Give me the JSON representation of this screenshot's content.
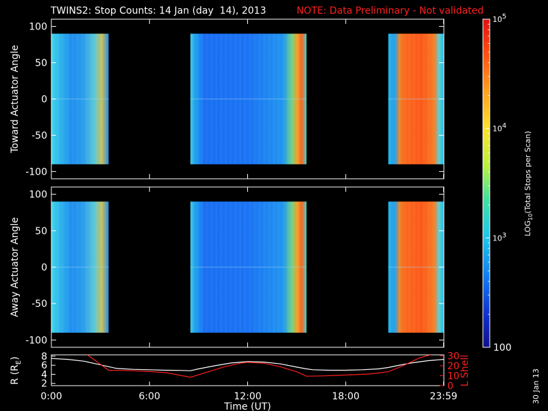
{
  "header": {
    "title": "TWINS2: Stop Counts: 14 Jan (day  14), 2013",
    "note": "NOTE: Data Preliminary - Not validated"
  },
  "footer": {
    "date_stamp": "30 Jan 13"
  },
  "colors": {
    "background": "#000000",
    "foreground": "#ffffff",
    "note": "#ff2020",
    "lshell_line": "#ff2020",
    "r_line": "#ffffff"
  },
  "chart_data": [
    {
      "type": "heatmap",
      "panel": "toward",
      "ylabel": "Toward Actuator Angle",
      "xlim_hours": [
        0,
        24
      ],
      "ylim": [
        -110,
        110
      ],
      "yticks": [
        100,
        50,
        0,
        -50,
        -100
      ],
      "data_angle_range": [
        -90,
        90
      ],
      "segments": [
        {
          "start": 0.0,
          "end": 3.5,
          "palette": "cyan-blue"
        },
        {
          "start": 8.5,
          "end": 15.6,
          "palette": "blue-center-orange-edge"
        },
        {
          "start": 20.6,
          "end": 24.0,
          "palette": "orange"
        }
      ]
    },
    {
      "type": "heatmap",
      "panel": "away",
      "ylabel": "Away Actuator Angle",
      "xlim_hours": [
        0,
        24
      ],
      "ylim": [
        -110,
        110
      ],
      "yticks": [
        100,
        50,
        0,
        -50,
        -100
      ],
      "data_angle_range": [
        -90,
        90
      ],
      "segments": [
        {
          "start": 0.0,
          "end": 3.5,
          "palette": "cyan-blue"
        },
        {
          "start": 8.5,
          "end": 15.6,
          "palette": "blue-center-orange-edge"
        },
        {
          "start": 20.6,
          "end": 24.0,
          "palette": "orange"
        }
      ]
    },
    {
      "type": "line",
      "panel": "orbit",
      "xlabel": "Time (UT)",
      "ylabel_left": "R (R",
      "ylabel_left_sub": "E",
      "ylabel_left_close": ")",
      "ylabel_right": "L Shell",
      "xticklabels": [
        "0:00",
        "6:00",
        "12:00",
        "18:00",
        "23:59"
      ],
      "xticks_hours": [
        0,
        6,
        12,
        18,
        23.98
      ],
      "ylim_left": [
        1.5,
        8.3
      ],
      "yticks_left": [
        8,
        6,
        4,
        2
      ],
      "ylim_right": [
        0,
        31
      ],
      "yticks_right": [
        30,
        20,
        10,
        0
      ],
      "series": [
        {
          "axis": "left",
          "x": [
            0,
            1,
            2,
            3,
            4,
            5,
            6,
            7,
            8,
            8.5,
            9,
            10,
            11,
            12,
            13,
            14,
            15,
            15.6,
            16,
            17,
            18,
            19,
            20,
            20.6,
            21,
            22,
            23,
            24
          ],
          "y": [
            7.5,
            7.3,
            6.9,
            6.1,
            5.3,
            5.1,
            5.0,
            4.9,
            4.85,
            4.8,
            5.2,
            5.9,
            6.5,
            6.8,
            6.7,
            6.3,
            5.6,
            5.2,
            5.0,
            4.9,
            4.9,
            5.0,
            5.2,
            5.5,
            5.8,
            6.5,
            7.0,
            7.3
          ]
        },
        {
          "axis": "right",
          "x": [
            2.2,
            3.5,
            5,
            6,
            7,
            8.5,
            9.5,
            10.5,
            11.5,
            12,
            13,
            14,
            15,
            15.6,
            16.5,
            17.5,
            18.5,
            19.5,
            20.6,
            21.5,
            22.5,
            23.2
          ],
          "y": [
            31,
            15.5,
            15,
            14.2,
            13.1,
            8.5,
            13.5,
            18.5,
            22.5,
            23.5,
            22.5,
            19,
            14,
            9.5,
            9.8,
            10.3,
            11,
            11.8,
            14,
            20,
            28,
            31
          ]
        }
      ]
    },
    {
      "type": "heatmap",
      "panel": "colorbar",
      "ylabel": "LOG",
      "ylabel_sub": "10",
      "ylabel_rest": "(Total Stops per Scan)",
      "scale": "log",
      "range": [
        100,
        100000
      ],
      "ticklabels": [
        {
          "base": "10",
          "exp": "5",
          "value": 100000
        },
        {
          "base": "10",
          "exp": "4",
          "value": 10000
        },
        {
          "base": "10",
          "exp": "3",
          "value": 1000
        },
        {
          "text": "100",
          "value": 100
        }
      ],
      "minor_ticks": [
        200,
        300,
        400,
        500,
        600,
        700,
        800,
        900,
        2000,
        3000,
        4000,
        5000,
        6000,
        7000,
        8000,
        9000,
        20000,
        30000,
        40000,
        50000,
        60000,
        70000,
        80000,
        90000
      ]
    }
  ]
}
